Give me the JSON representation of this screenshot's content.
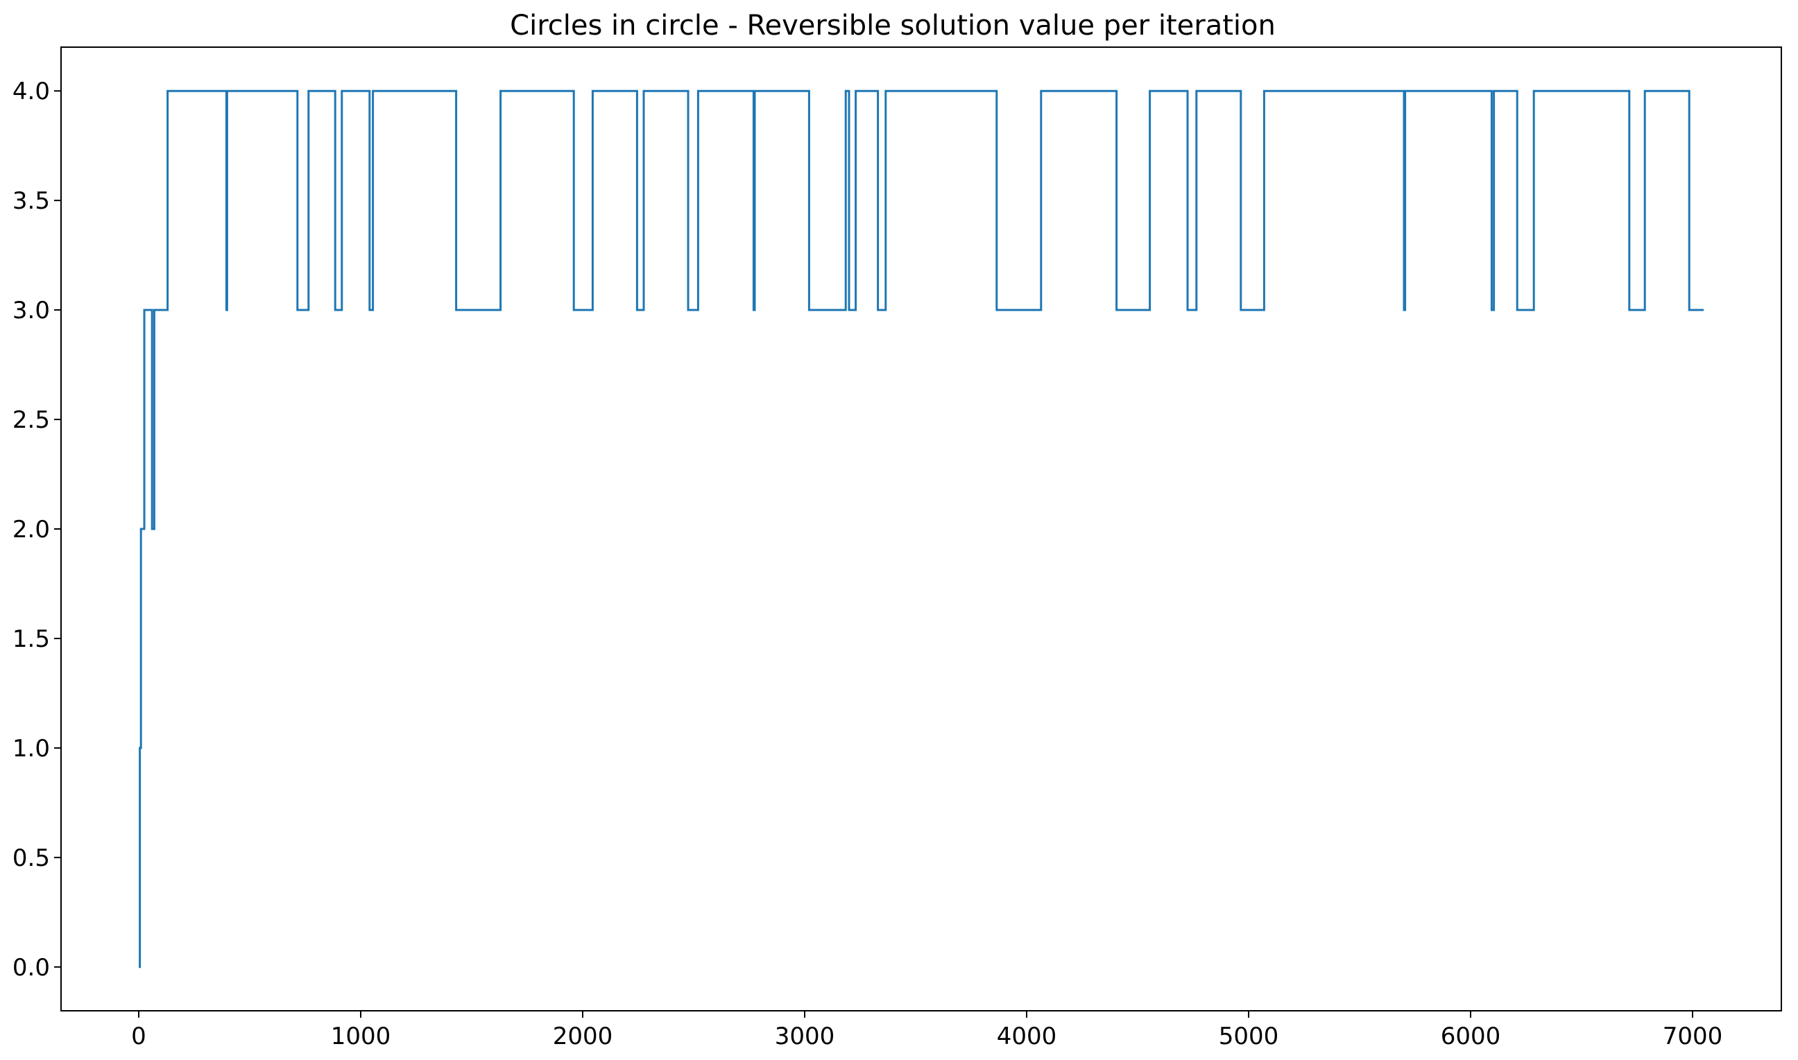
{
  "chart_data": {
    "type": "line",
    "title": "Circles in circle - Reversible solution value per iteration",
    "xlabel": "",
    "ylabel": "",
    "xlim": [
      -350,
      7400
    ],
    "ylim": [
      -0.2,
      4.2
    ],
    "x_ticks": [
      0,
      1000,
      2000,
      3000,
      4000,
      5000,
      6000,
      7000
    ],
    "y_ticks": [
      0.0,
      0.5,
      1.0,
      1.5,
      2.0,
      2.5,
      3.0,
      3.5,
      4.0
    ],
    "x_tick_labels": [
      "0",
      "1000",
      "2000",
      "3000",
      "4000",
      "5000",
      "6000",
      "7000"
    ],
    "y_tick_labels": [
      "0.0",
      "0.5",
      "1.0",
      "1.5",
      "2.0",
      "2.5",
      "3.0",
      "3.5",
      "4.0"
    ],
    "grid": false,
    "legend": "none",
    "line_style": "steps-post",
    "color": "#1f77b4",
    "series": [
      {
        "x": [
          0,
          5,
          10,
          25,
          50,
          60,
          70,
          130,
          395,
          398,
          715,
          765,
          885,
          915,
          1040,
          1055,
          1430,
          1630,
          1960,
          2045,
          2245,
          2275,
          2475,
          2520,
          2770,
          2775,
          3020,
          3180,
          3185,
          3190,
          3200,
          3210,
          3230,
          3330,
          3365,
          3865,
          4065,
          4405,
          4555,
          4725,
          4765,
          4965,
          5070,
          5700,
          5705,
          6080,
          6095,
          6105,
          6210,
          6285,
          6715,
          6785,
          6985,
          7050
        ],
        "y": [
          0,
          1,
          2,
          3,
          3,
          2,
          3,
          4,
          3,
          4,
          3,
          4,
          3,
          4,
          3,
          4,
          3,
          4,
          3,
          4,
          3,
          4,
          3,
          4,
          3,
          4,
          3,
          3,
          4,
          4,
          3,
          3,
          4,
          3,
          4,
          3,
          4,
          3,
          4,
          3,
          4,
          3,
          4,
          3,
          4,
          4,
          3,
          4,
          3,
          4,
          3,
          4,
          3,
          3
        ]
      }
    ]
  }
}
